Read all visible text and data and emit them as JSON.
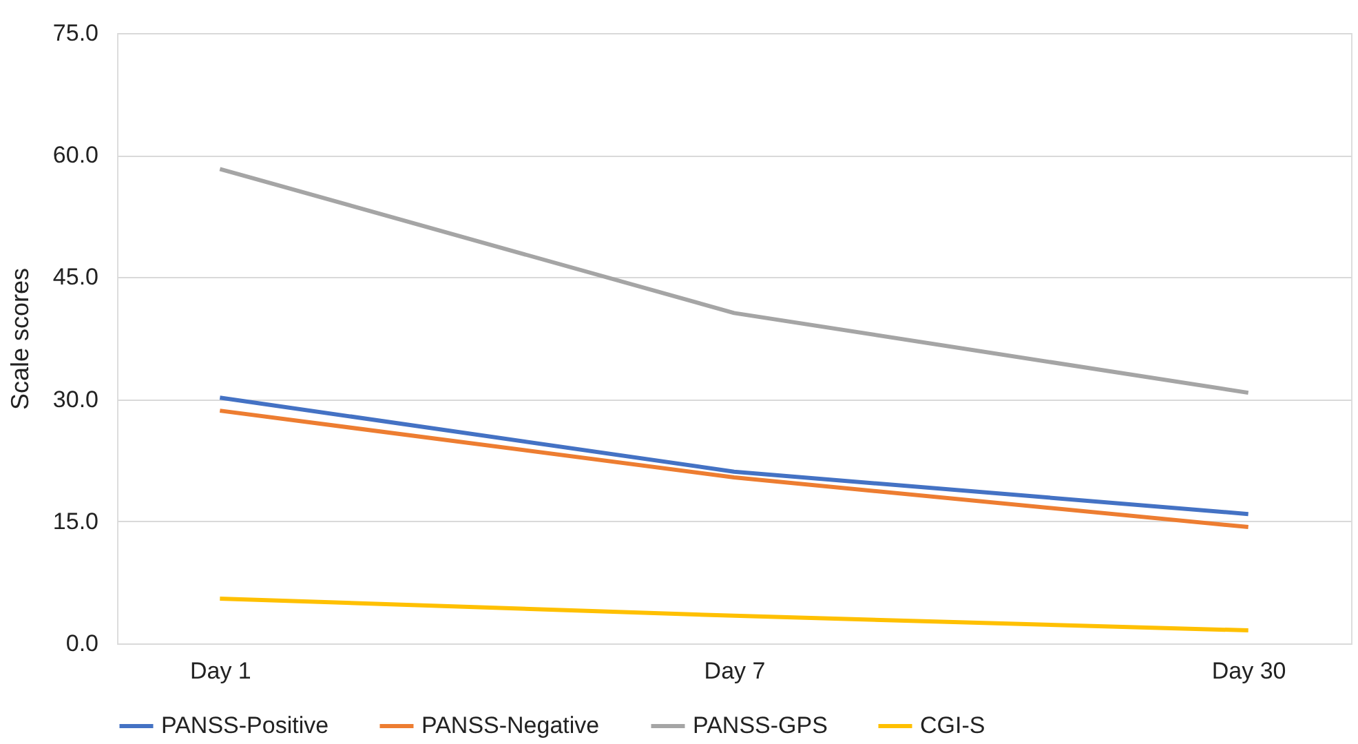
{
  "chart_data": {
    "type": "line",
    "ylabel": "Scale scores",
    "categories": [
      "Day 1",
      "Day 7",
      "Day 30"
    ],
    "series": [
      {
        "name": "PANSS-Positive",
        "color": "#4472c4",
        "values": [
          30.2,
          21.1,
          15.9
        ]
      },
      {
        "name": "PANSS-Negative",
        "color": "#ed7d31",
        "values": [
          28.6,
          20.4,
          14.3
        ]
      },
      {
        "name": "PANSS-GPS",
        "color": "#a5a5a5",
        "values": [
          58.3,
          40.6,
          30.8
        ]
      },
      {
        "name": "CGI-S",
        "color": "#ffc000",
        "values": [
          5.5,
          3.4,
          1.6
        ]
      }
    ],
    "ylim": [
      0,
      75
    ],
    "yticks": [
      {
        "value": 0,
        "label": "0.0"
      },
      {
        "value": 15,
        "label": "15.0"
      },
      {
        "value": 30,
        "label": "30.0"
      },
      {
        "value": 45,
        "label": "45.0"
      },
      {
        "value": 60,
        "label": "60.0"
      },
      {
        "value": 75,
        "label": "75.0"
      }
    ],
    "grid": "y",
    "legend": "bottom",
    "marker": "none",
    "line_style": "solid"
  }
}
